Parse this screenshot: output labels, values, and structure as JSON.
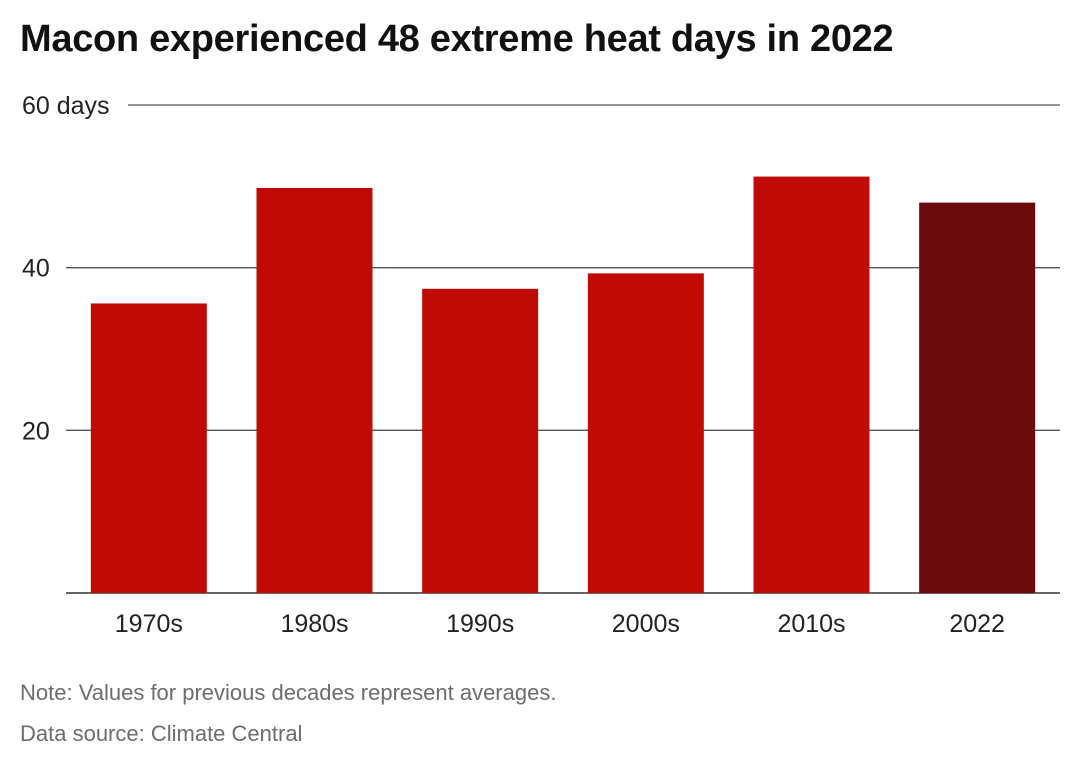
{
  "title": "Macon experienced 48 extreme heat days in 2022",
  "note": "Note: Values for previous decades represent averages.",
  "source": "Data source: Climate Central",
  "colors": {
    "decade_bar": "#c00a05",
    "highlight_bar": "#6b0a0c",
    "gridline": "#555555"
  },
  "chart_data": {
    "type": "bar",
    "categories": [
      "1970s",
      "1980s",
      "1990s",
      "2000s",
      "2010s",
      "2022"
    ],
    "values": [
      35.6,
      49.8,
      37.4,
      39.3,
      51.2,
      48
    ],
    "highlight_index": 5,
    "ylim": [
      0,
      60
    ],
    "yticks": [
      {
        "value": 20,
        "label": "20"
      },
      {
        "value": 40,
        "label": "40"
      },
      {
        "value": 60,
        "label": "60 days"
      }
    ],
    "grid": true
  }
}
